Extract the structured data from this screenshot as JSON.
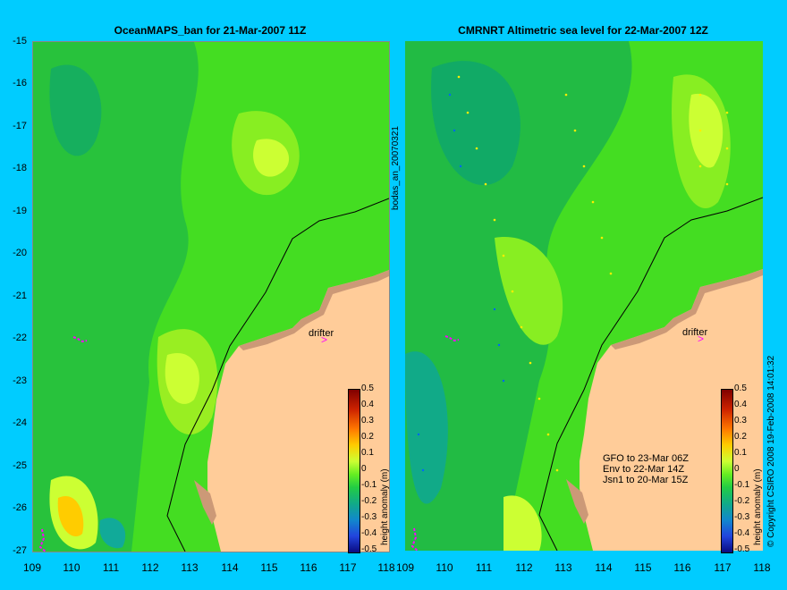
{
  "left_panel": {
    "title": "OceanMAPS_ban for 21-Mar-2007 11Z",
    "side_label": "bodas_an_20070321",
    "drifter_label": "drifter",
    "colorbar_label": "height anomaly (m)"
  },
  "right_panel": {
    "title": "CMRNRT Altimetric sea level  for 22-Mar-2007 12Z",
    "drifter_label": "drifter",
    "colorbar_label": "height anomaly (m)",
    "notes": [
      "GFO to 23-Mar 06Z",
      "Env to 22-Mar 14Z",
      "Jsn1 to 20-Mar 15Z"
    ]
  },
  "copyright": "© Copyright CSIRO 2008   19-Feb-2008 14:01:32",
  "y_axis_labels": [
    "-15",
    "-16",
    "-17",
    "-18",
    "-19",
    "-20",
    "-21",
    "-22",
    "-23",
    "-24",
    "-25",
    "-26",
    "-27"
  ],
  "x_axis_labels": [
    "109",
    "110",
    "111",
    "112",
    "113",
    "114",
    "115",
    "116",
    "117",
    "118"
  ],
  "colorbar_ticks": [
    "0.5",
    "0.4",
    "0.3",
    "0.2",
    "0.1",
    "0",
    "-0.1",
    "-0.2",
    "-0.3",
    "-0.4",
    "-0.5"
  ],
  "colors": {
    "background": "#00ccff",
    "ocean": "#33cc33",
    "land": "#ffcc99",
    "shoal": "#cc9977",
    "drifter": "#ff00ff"
  }
}
